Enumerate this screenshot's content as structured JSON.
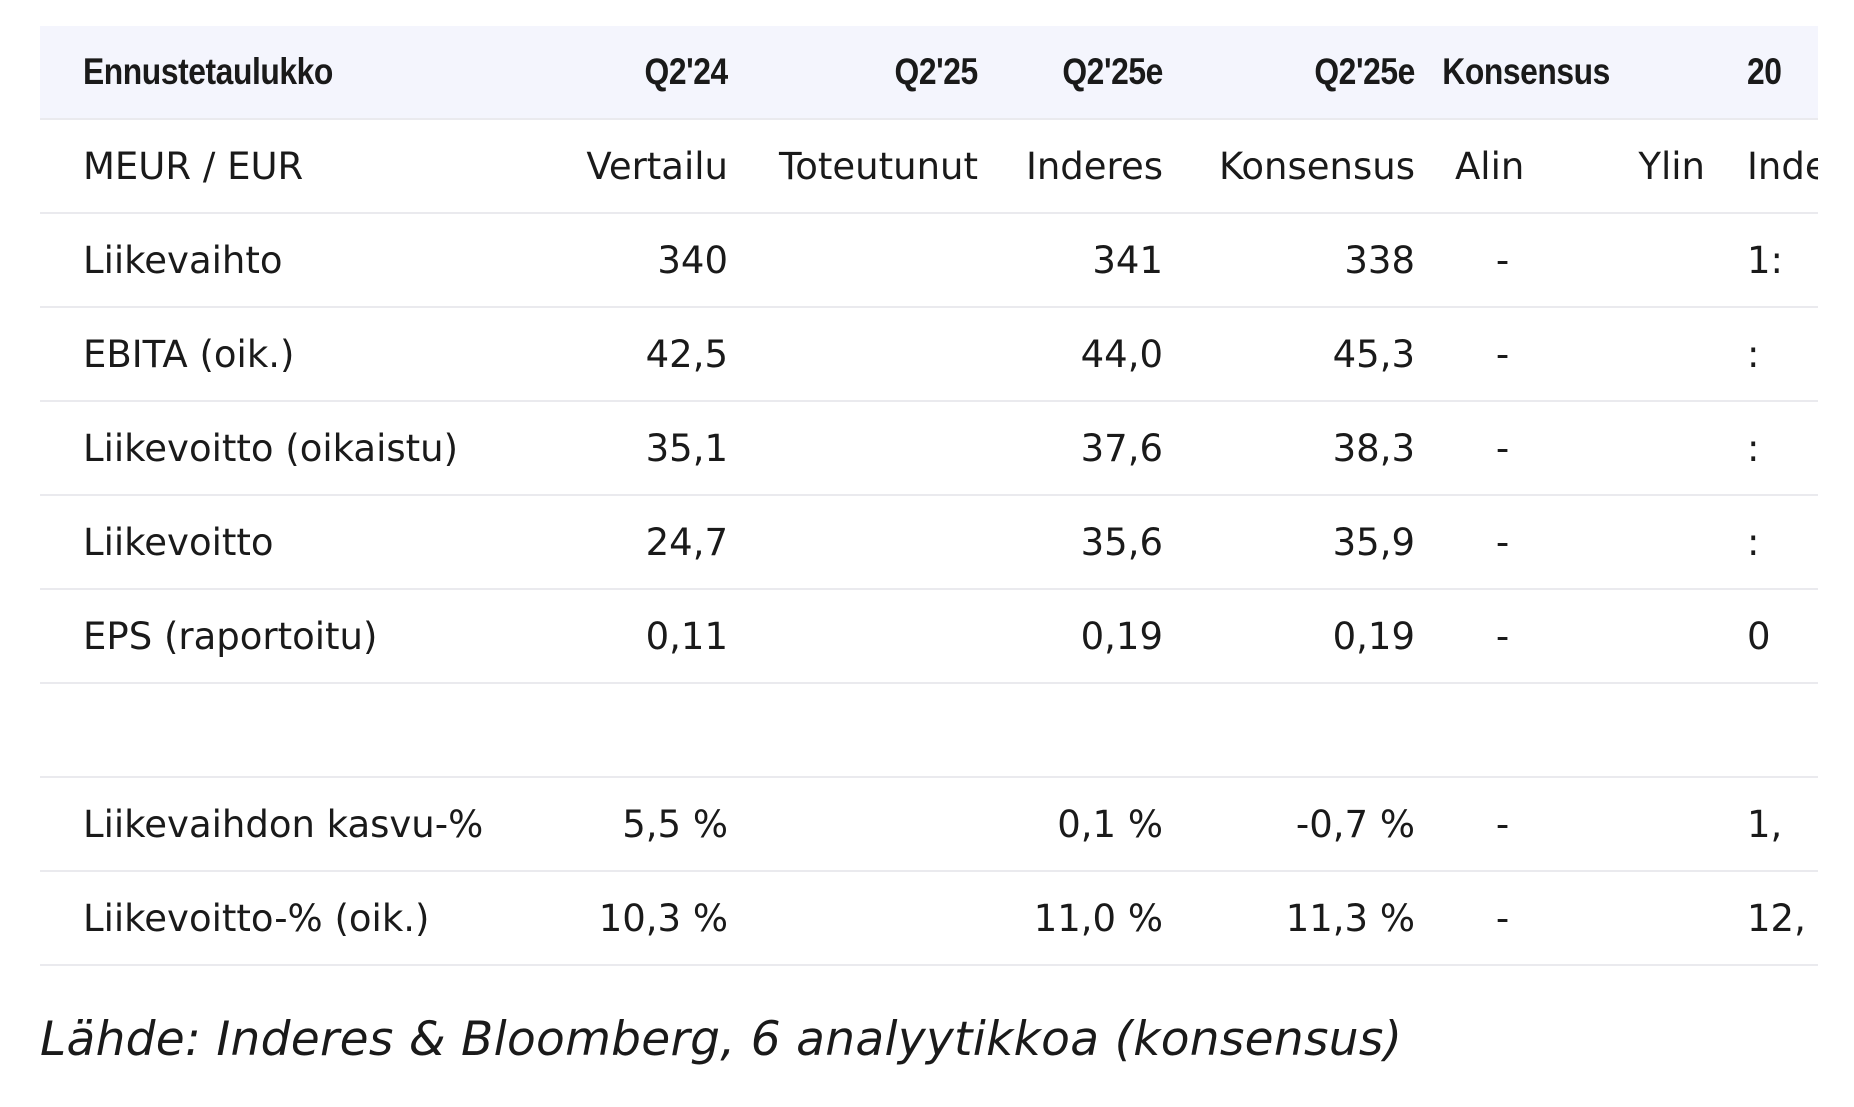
{
  "table": {
    "header": [
      "Ennustetaulukko",
      "Q2'24",
      "Q2'25",
      "Q2'25e",
      "Q2'25e",
      "Konsensus",
      "",
      "20"
    ],
    "subheader": [
      "MEUR / EUR",
      "Vertailu",
      "Toteutunut",
      "Inderes",
      "Konsensus",
      "Alin",
      "Ylin",
      "Inde"
    ],
    "rows": [
      [
        "Liikevaihto",
        "340",
        "",
        "341",
        "338",
        "-",
        "",
        "1:"
      ],
      [
        "EBITA (oik.)",
        "42,5",
        "",
        "44,0",
        "45,3",
        "-",
        "",
        ":"
      ],
      [
        "Liikevoitto (oikaistu)",
        "35,1",
        "",
        "37,6",
        "38,3",
        "-",
        "",
        ":"
      ],
      [
        "Liikevoitto",
        "24,7",
        "",
        "35,6",
        "35,9",
        "-",
        "",
        ":"
      ],
      [
        "EPS (raportoitu)",
        "0,11",
        "",
        "0,19",
        "0,19",
        "-",
        "",
        "0"
      ],
      [
        "",
        "",
        "",
        "",
        "",
        "",
        "",
        ""
      ],
      [
        "Liikevaihdon kasvu-%",
        "5,5 %",
        "",
        "0,1 %",
        "-0,7 %",
        "-",
        "",
        "1,"
      ],
      [
        "Liikevoitto-% (oik.)",
        "10,3 %",
        "",
        "11,0 %",
        "11,3 %",
        "-",
        "",
        "12,"
      ]
    ]
  },
  "source": "Lähde: Inderes & Bloomberg, 6 analyytikkoa (konsensus)"
}
